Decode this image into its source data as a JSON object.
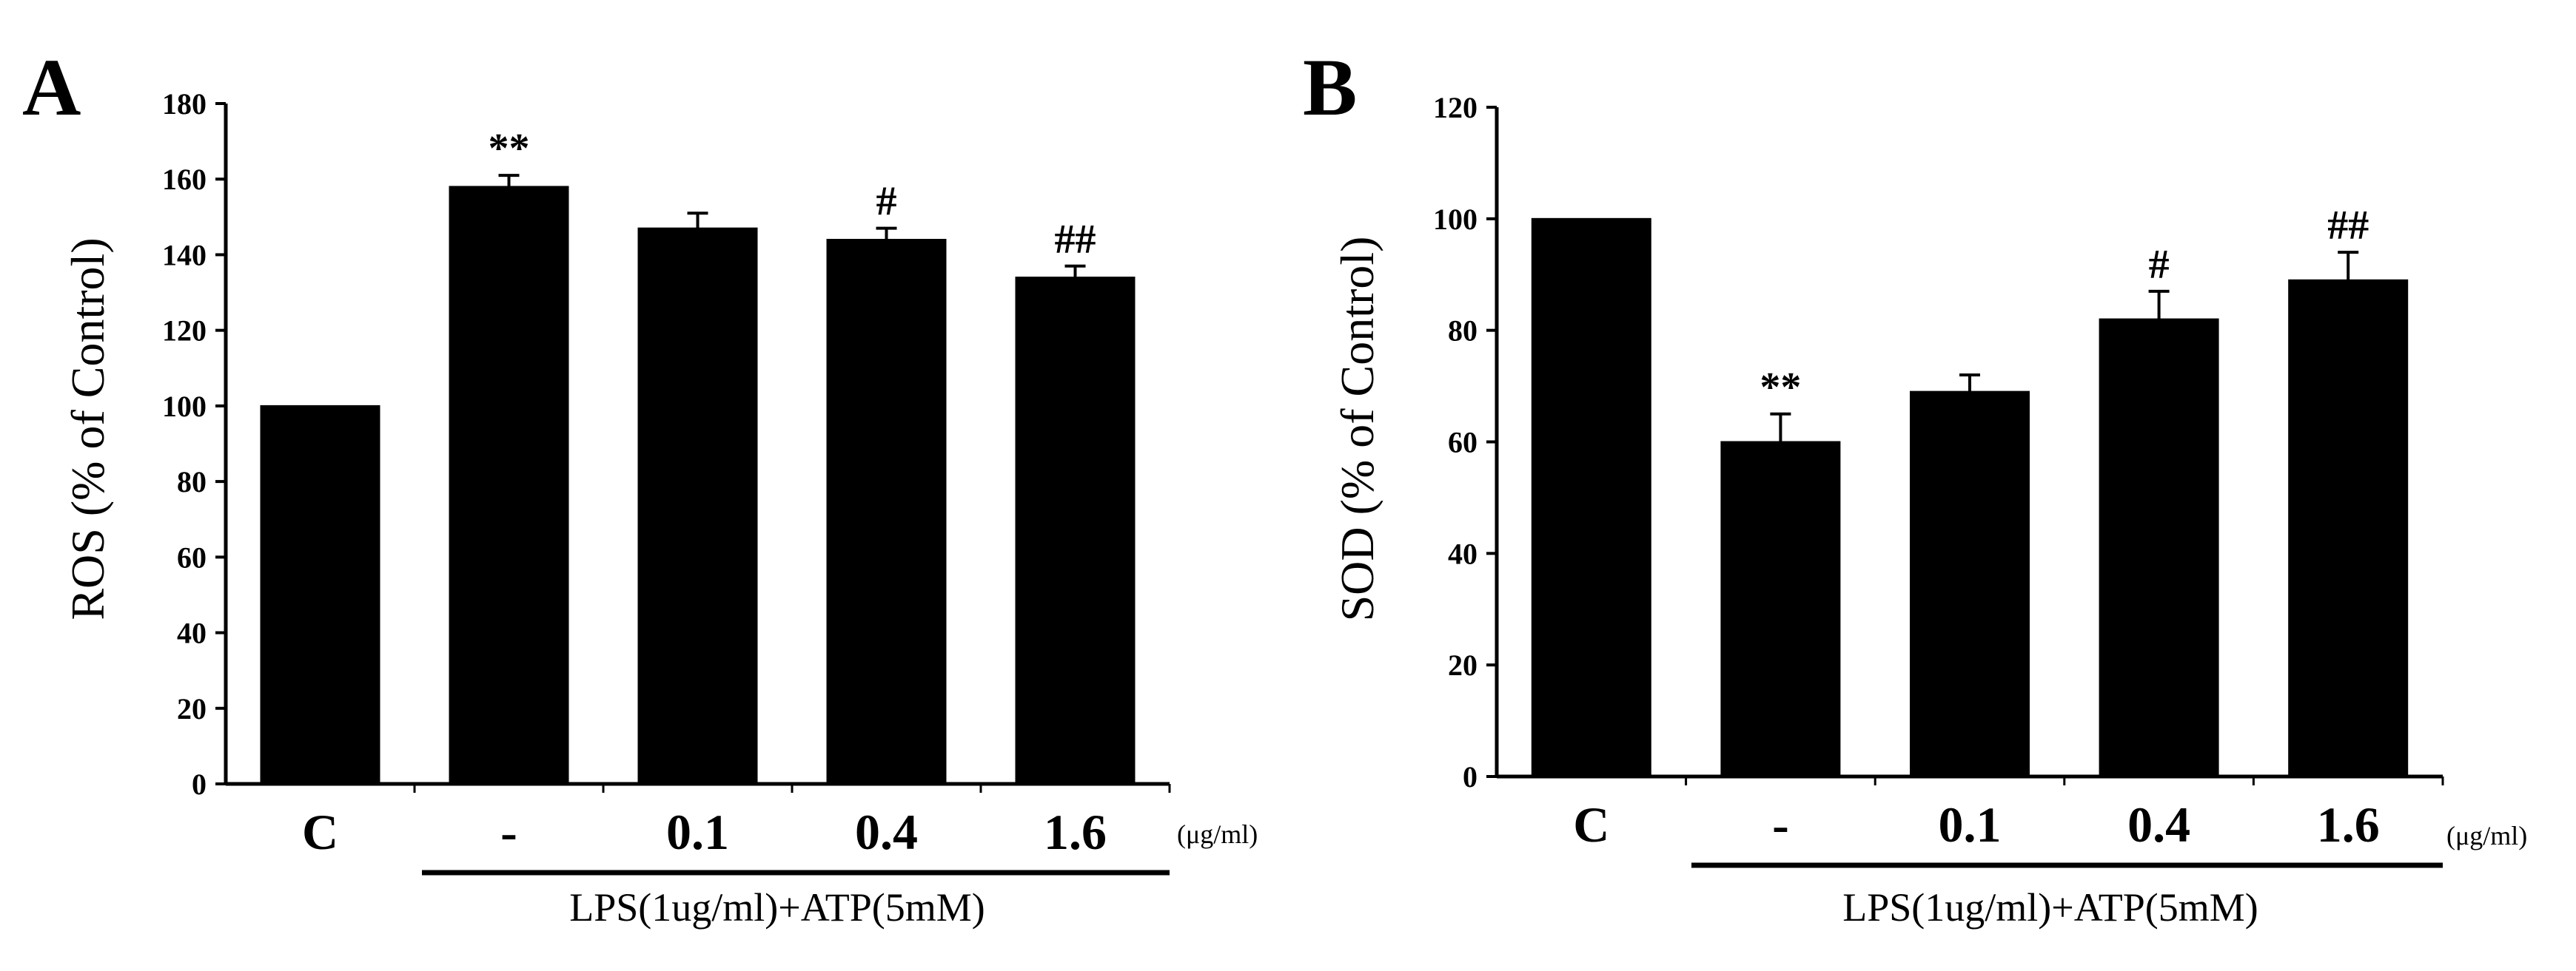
{
  "chart_data": [
    {
      "type": "bar",
      "panel_label": "A",
      "ylabel": "ROS (% of Control)",
      "ylim": [
        0,
        180
      ],
      "yticks": [
        "0",
        "20",
        "40",
        "60",
        "80",
        "100",
        "120",
        "140",
        "160",
        "180"
      ],
      "categories": [
        "C",
        "-",
        "0.1",
        "0.4",
        "1.6"
      ],
      "values": [
        100,
        158,
        147,
        144,
        134
      ],
      "errors": [
        0,
        3,
        4,
        3,
        3
      ],
      "significance": [
        "",
        "**",
        "",
        "#",
        "##"
      ],
      "unit_label": "(μg/ml)",
      "group_label": "LPS(1ug/ml)+ATP(5mM)",
      "bar_color": "#000000",
      "grid": false
    },
    {
      "type": "bar",
      "panel_label": "B",
      "ylabel": "SOD (% of Control)",
      "ylim": [
        0,
        120
      ],
      "yticks": [
        "0",
        "20",
        "40",
        "60",
        "80",
        "100",
        "120"
      ],
      "categories": [
        "C",
        "-",
        "0.1",
        "0.4",
        "1.6"
      ],
      "values": [
        100,
        60,
        69,
        82,
        89
      ],
      "errors": [
        0,
        5,
        3,
        5,
        5
      ],
      "significance": [
        "",
        "**",
        "",
        "#",
        "##"
      ],
      "unit_label": "(μg/ml)",
      "group_label": "LPS(1ug/ml)+ATP(5mM)",
      "bar_color": "#000000",
      "grid": false
    }
  ]
}
